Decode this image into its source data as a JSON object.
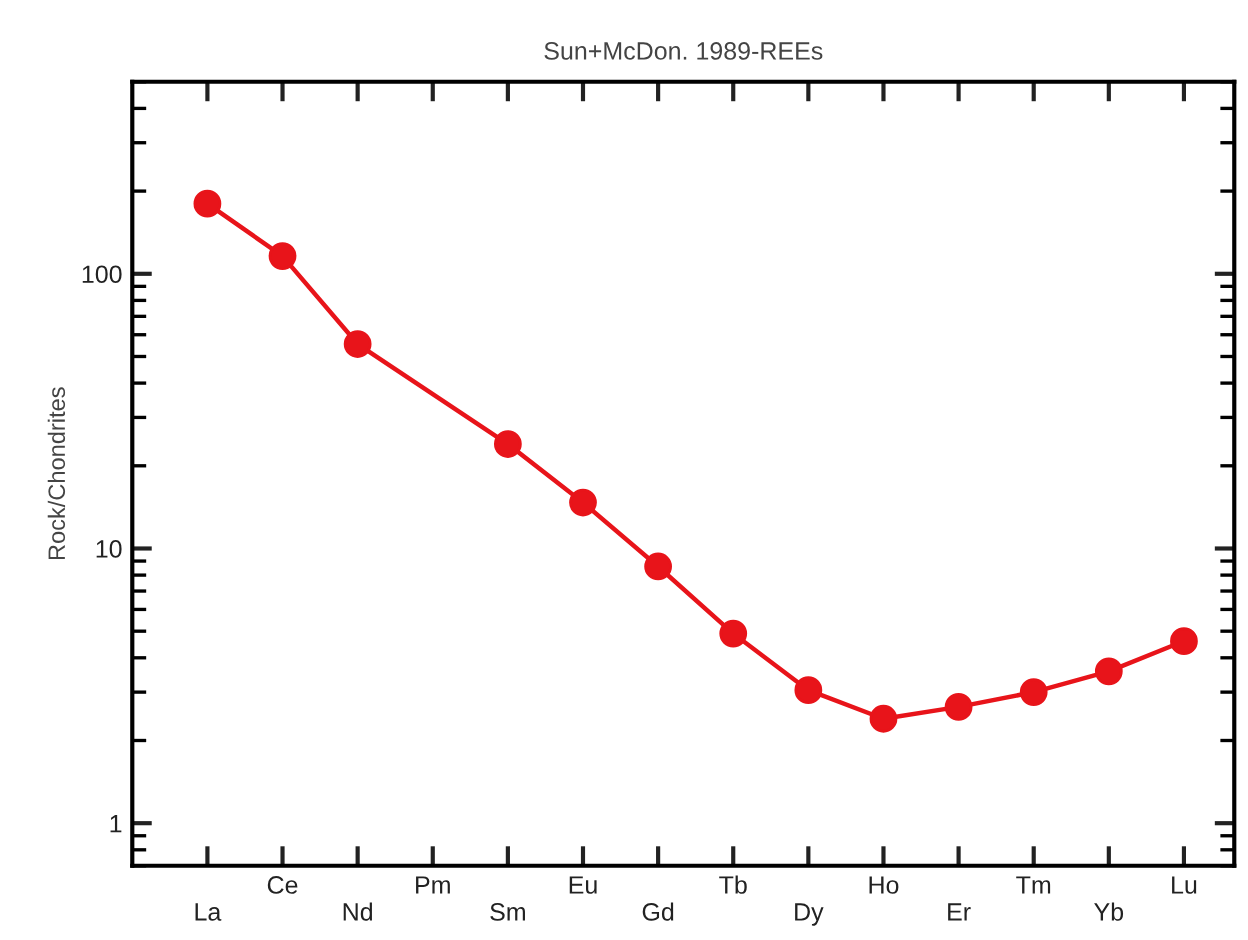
{
  "chart_data": {
    "type": "line",
    "title": "Sun+McDon. 1989-REEs",
    "ylabel": "Rock/Chondrites",
    "categories": [
      "La",
      "Ce",
      "Nd",
      "Pm",
      "Sm",
      "Eu",
      "Gd",
      "Tb",
      "Dy",
      "Ho",
      "Er",
      "Tm",
      "Yb",
      "Lu"
    ],
    "series": [
      {
        "color": "#e8141a",
        "values": [
          180,
          116,
          55.5,
          null,
          24,
          14.7,
          8.6,
          4.9,
          3.05,
          2.4,
          2.65,
          3.0,
          3.57,
          4.6
        ]
      }
    ],
    "log": true,
    "ylim": [
      0.7,
      500
    ],
    "yticks": [
      1,
      10,
      100
    ],
    "grid": false,
    "legend": false,
    "marker": "circle",
    "line_style": "solid"
  }
}
